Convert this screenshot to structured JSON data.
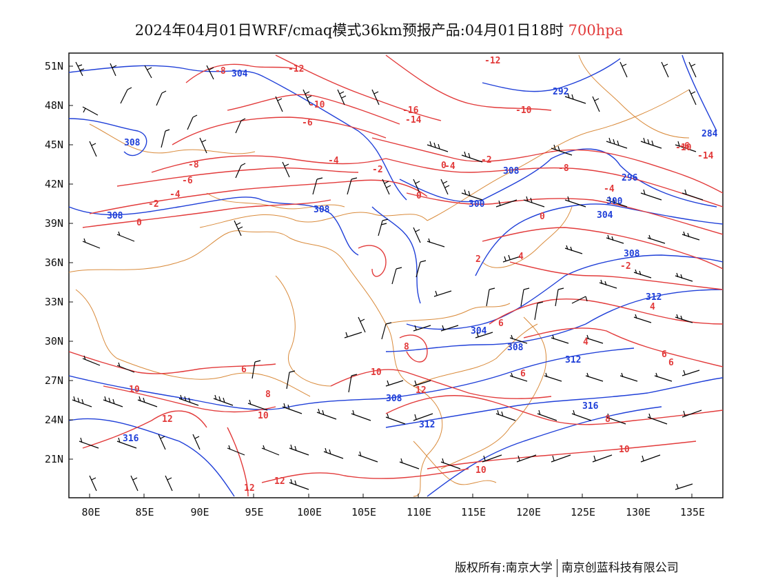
{
  "title": {
    "prefix": "2024年04月01日WRF/cmaq模式36km预报产品:04月01日18时",
    "level": "700hpa"
  },
  "axes": {
    "x_ticks": [
      "80E",
      "85E",
      "90E",
      "95E",
      "100E",
      "105E",
      "110E",
      "115E",
      "120E",
      "125E",
      "130E",
      "135E"
    ],
    "y_ticks": [
      "51N",
      "48N",
      "45N",
      "42N",
      "39N",
      "36N",
      "33N",
      "30N",
      "27N",
      "24N",
      "21N"
    ]
  },
  "height_contour_labels": [
    "304",
    "308",
    "308",
    "308",
    "300",
    "308",
    "292",
    "296",
    "300",
    "304",
    "308",
    "312",
    "312",
    "308",
    "312",
    "316",
    "316",
    "284",
    "304",
    "308"
  ],
  "temperature_contour_labels": [
    "-8",
    "-12",
    "-10",
    "-6",
    "-8",
    "-4",
    "-2",
    "-6",
    "-4",
    "-2",
    "0",
    "-12",
    "-10",
    "-14",
    "-16",
    "-4",
    "-2",
    "-8",
    "-10",
    "-6",
    "-14",
    "-4",
    "0",
    "-2",
    "4",
    "0",
    "6",
    "8",
    "4",
    "6",
    "6",
    "6",
    "10",
    "8",
    "10",
    "12",
    "10",
    "12",
    "12",
    "12",
    "8",
    "10",
    "10",
    "6",
    "4",
    "0",
    "2"
  ],
  "contour_colors": {
    "height": "#1f3fd8",
    "temperature": "#e23a3a",
    "boundary": "#d98a3a",
    "wind": "#000000"
  },
  "footer": {
    "left": "版权所有:南京大学",
    "right": "南京创蓝科技有限公司"
  }
}
